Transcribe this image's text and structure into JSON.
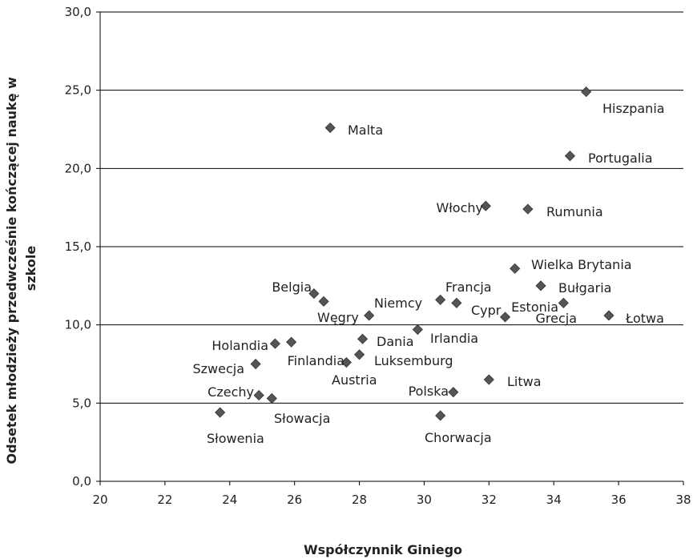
{
  "chart_data": {
    "type": "scatter",
    "title": "",
    "xlabel": "Współczynnik Giniego",
    "ylabel_lines": [
      "Odsetek młodzieży przedwcześnie kończącej naukę w",
      "szkole"
    ],
    "xlim": [
      20,
      38
    ],
    "ylim": [
      0,
      30
    ],
    "x_ticks": [
      20,
      22,
      24,
      26,
      28,
      30,
      32,
      34,
      36,
      38
    ],
    "y_ticks": [
      "0,0",
      "5,0",
      "10,0",
      "15,0",
      "20,0",
      "25,0",
      "30,0"
    ],
    "y_tick_values": [
      0,
      5,
      10,
      15,
      20,
      25,
      30
    ],
    "grid": "horizontal",
    "marker_color": "#555555",
    "points": [
      {
        "label": "Hiszpania",
        "x": 35.0,
        "y": 24.9
      },
      {
        "label": "Malta",
        "x": 27.1,
        "y": 22.6
      },
      {
        "label": "Portugalia",
        "x": 34.5,
        "y": 20.8
      },
      {
        "label": "Włochy",
        "x": 31.9,
        "y": 17.6
      },
      {
        "label": "Rumunia",
        "x": 33.2,
        "y": 17.4
      },
      {
        "label": "Wielka Brytania",
        "x": 32.8,
        "y": 13.6
      },
      {
        "label": "Bułgaria",
        "x": 33.6,
        "y": 12.5
      },
      {
        "label": "Belgia",
        "x": 26.6,
        "y": 12.0
      },
      {
        "label": "",
        "x": 26.9,
        "y": 11.5
      },
      {
        "label": "Francja",
        "x": 30.5,
        "y": 11.6
      },
      {
        "label": "",
        "x": 31.0,
        "y": 11.4
      },
      {
        "label": "Estonia",
        "x": 34.3,
        "y": 11.4
      },
      {
        "label": "Niemcy",
        "x": 28.3,
        "y": 10.6
      },
      {
        "label": "Łotwa",
        "x": 35.7,
        "y": 10.6
      },
      {
        "label": "Cypr",
        "x": 32.5,
        "y": 10.5
      },
      {
        "label": "Irlandia",
        "x": 29.8,
        "y": 9.7
      },
      {
        "label": "Dania",
        "x": 28.1,
        "y": 9.1
      },
      {
        "label": "Holandia",
        "x": 25.4,
        "y": 8.8
      },
      {
        "label": "",
        "x": 25.9,
        "y": 8.9
      },
      {
        "label": "Luksemburg",
        "x": 28.0,
        "y": 8.1
      },
      {
        "label": "Finlandia",
        "x": 27.6,
        "y": 7.6
      },
      {
        "label": "Szwecja",
        "x": 24.8,
        "y": 7.5
      },
      {
        "label": "Litwa",
        "x": 32.0,
        "y": 6.5
      },
      {
        "label": "Polska",
        "x": 30.9,
        "y": 5.7
      },
      {
        "label": "Czechy",
        "x": 24.9,
        "y": 5.5
      },
      {
        "label": "Słowacja",
        "x": 25.3,
        "y": 5.3
      },
      {
        "label": "Słowenia",
        "x": 23.7,
        "y": 4.4
      },
      {
        "label": "Chorwacja",
        "x": 30.5,
        "y": 4.2
      }
    ],
    "extra_labels": [
      "Węgry",
      "Austria",
      "Grecja"
    ]
  }
}
